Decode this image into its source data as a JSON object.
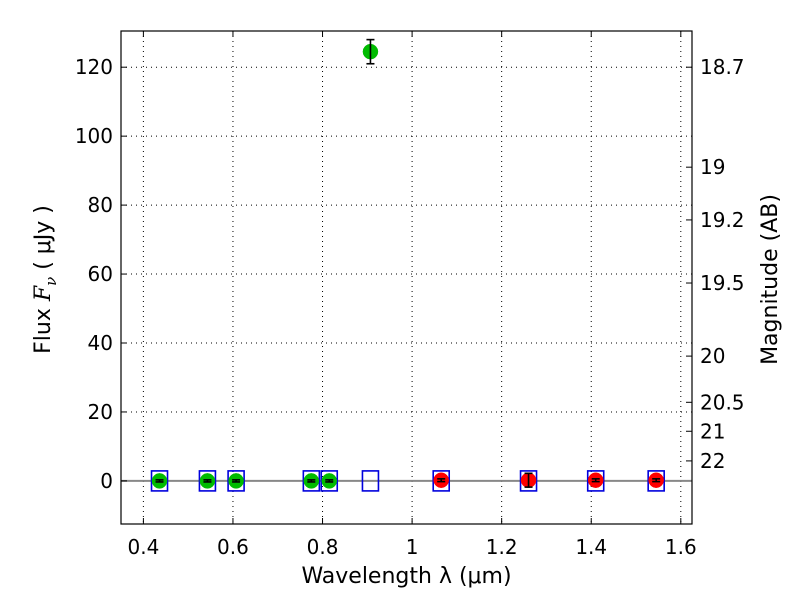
{
  "chart_data": {
    "type": "scatter",
    "xlabel": "Wavelength  λ (μm)",
    "ylabel": {
      "prefix": "Flux  ",
      "symbol": "F",
      "subscript": "ν",
      "unit": "  ( μJy )"
    },
    "right_ylabel": "Magnitude (AB)",
    "xlim": [
      0.35,
      1.625
    ],
    "ylim": [
      -12.5,
      130.5
    ],
    "xticks": [
      0.4,
      0.6,
      0.8,
      1.0,
      1.2,
      1.4,
      1.6
    ],
    "xtick_labels": [
      "0.4",
      "0.6",
      "0.8",
      "1",
      "1.2",
      "1.4",
      "1.6"
    ],
    "yticks": [
      0,
      20,
      40,
      60,
      80,
      100,
      120
    ],
    "ytick_labels": [
      "0",
      "20",
      "40",
      "60",
      "80",
      "100",
      "120"
    ],
    "right_ticks": [
      {
        "label": "18.7",
        "flux": 120.0
      },
      {
        "label": "19",
        "flux": 91.0
      },
      {
        "label": "19.2",
        "flux": 75.7
      },
      {
        "label": "19.5",
        "flux": 57.4
      },
      {
        "label": "20",
        "flux": 36.2
      },
      {
        "label": "20.5",
        "flux": 22.8
      },
      {
        "label": "21",
        "flux": 14.4
      },
      {
        "label": "22",
        "flux": 5.8
      }
    ],
    "grid": true,
    "baseline": 0,
    "colors": {
      "green": "#00bb00",
      "red": "#ff0000",
      "model": "#0000dd",
      "errorbar": "#000000",
      "baseline": "#888888"
    },
    "observed": [
      {
        "x": 0.436,
        "y": 0.0,
        "err": 0.3,
        "color": "green"
      },
      {
        "x": 0.543,
        "y": 0.0,
        "err": 0.3,
        "color": "green"
      },
      {
        "x": 0.607,
        "y": 0.0,
        "err": 0.3,
        "color": "green"
      },
      {
        "x": 0.775,
        "y": 0.0,
        "err": 0.3,
        "color": "green"
      },
      {
        "x": 0.815,
        "y": 0.0,
        "err": 0.3,
        "color": "green"
      },
      {
        "x": 0.907,
        "y": 124.5,
        "err": 3.5,
        "color": "green"
      },
      {
        "x": 1.065,
        "y": 0.2,
        "err": 0.4,
        "color": "red"
      },
      {
        "x": 1.26,
        "y": 0.2,
        "err": 2.0,
        "color": "red"
      },
      {
        "x": 1.41,
        "y": 0.2,
        "err": 0.4,
        "color": "red"
      },
      {
        "x": 1.545,
        "y": 0.2,
        "err": 0.4,
        "color": "red"
      }
    ],
    "model": [
      {
        "x": 0.436,
        "y": 0.0
      },
      {
        "x": 0.543,
        "y": 0.0
      },
      {
        "x": 0.607,
        "y": 0.0
      },
      {
        "x": 0.775,
        "y": 0.0
      },
      {
        "x": 0.815,
        "y": 0.0
      },
      {
        "x": 0.907,
        "y": 0.0
      },
      {
        "x": 1.065,
        "y": 0.0
      },
      {
        "x": 1.26,
        "y": 0.0
      },
      {
        "x": 1.41,
        "y": 0.0
      },
      {
        "x": 1.545,
        "y": 0.0
      }
    ]
  }
}
